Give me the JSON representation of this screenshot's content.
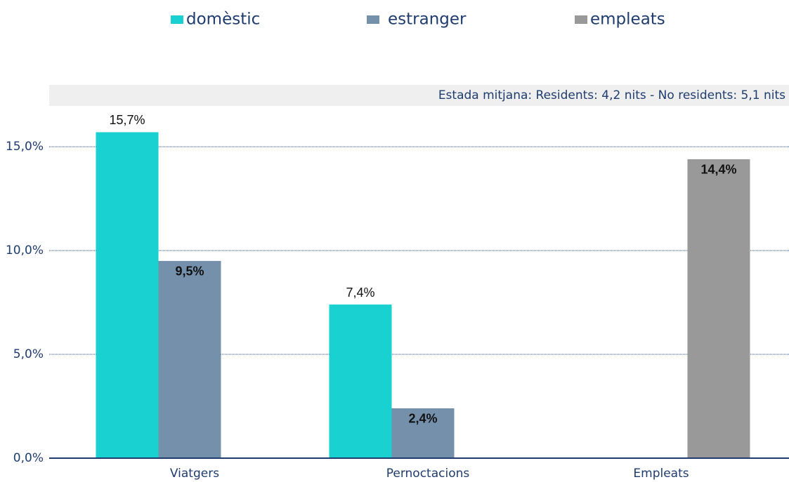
{
  "chart_data": {
    "type": "bar",
    "annotation": "Estada mitjana: Residents: 4,2 nits - No residents: 5,1 nits",
    "categories": [
      "Viatgers",
      "Pernoctacions",
      "Empleats"
    ],
    "series": [
      {
        "name": "domèstic",
        "color": "#1ad1d1",
        "values": [
          15.7,
          7.4,
          null
        ],
        "value_labels": [
          "15,7%",
          "7,4%",
          null
        ]
      },
      {
        "name": "estranger",
        "color": "#7490ab",
        "values": [
          9.5,
          2.4,
          null
        ],
        "value_labels": [
          "9,5%",
          "2,4%",
          null
        ]
      },
      {
        "name": "empleats",
        "color": "#999999",
        "values": [
          null,
          null,
          14.4
        ],
        "value_labels": [
          null,
          null,
          "14,4%"
        ]
      }
    ],
    "ylim": [
      0,
      17
    ],
    "yticks": [
      {
        "value": 0,
        "label": "0,0%"
      },
      {
        "value": 5,
        "label": "5,0%"
      },
      {
        "value": 10,
        "label": "10,0%"
      },
      {
        "value": 15,
        "label": "15,0%"
      }
    ],
    "grid": true
  }
}
